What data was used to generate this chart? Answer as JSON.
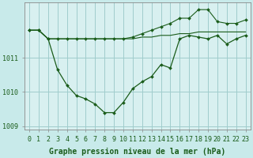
{
  "xlabel": "Graphe pression niveau de la mer (hPa)",
  "background_color": "#c8eaea",
  "plot_bg_color": "#d8f0f0",
  "grid_color": "#a0cccc",
  "line_color": "#1a5c1a",
  "hours": [
    0,
    1,
    2,
    3,
    4,
    5,
    6,
    7,
    8,
    9,
    10,
    11,
    12,
    13,
    14,
    15,
    16,
    17,
    18,
    19,
    20,
    21,
    22,
    23
  ],
  "line_main": [
    1011.8,
    1011.8,
    1011.55,
    1010.65,
    1010.2,
    1009.9,
    1009.8,
    1009.65,
    1009.4,
    1009.4,
    1009.7,
    1010.1,
    1010.3,
    1010.45,
    1010.8,
    1010.7,
    1011.55,
    1011.65,
    1011.6,
    1011.55,
    1011.65,
    1011.4,
    1011.55,
    1011.65
  ],
  "line_low": [
    1011.8,
    1011.8,
    1011.55,
    1011.55,
    1011.55,
    1011.55,
    1011.55,
    1011.55,
    1011.55,
    1011.55,
    1011.55,
    1011.55,
    1011.6,
    1011.6,
    1011.65,
    1011.65,
    1011.7,
    1011.7,
    1011.75,
    1011.75,
    1011.75,
    1011.75,
    1011.75,
    1011.75
  ],
  "line_high": [
    1011.8,
    1011.8,
    1011.55,
    1011.55,
    1011.55,
    1011.55,
    1011.55,
    1011.55,
    1011.55,
    1011.55,
    1011.55,
    1011.6,
    1011.7,
    1011.8,
    1011.9,
    1012.0,
    1012.15,
    1012.15,
    1012.4,
    1012.4,
    1012.05,
    1012.0,
    1012.0,
    1012.1
  ],
  "ylim": [
    1008.9,
    1012.6
  ],
  "yticks": [
    1009,
    1010,
    1011
  ],
  "xticks": [
    0,
    1,
    2,
    3,
    4,
    5,
    6,
    7,
    8,
    9,
    10,
    11,
    12,
    13,
    14,
    15,
    16,
    17,
    18,
    19,
    20,
    21,
    22,
    23
  ],
  "fontsize_label": 7,
  "fontsize_tick": 6
}
